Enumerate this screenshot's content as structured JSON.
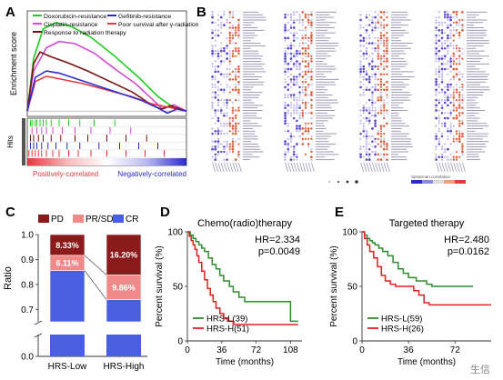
{
  "panel_labels": {
    "a": "A",
    "b": "B",
    "c": "C",
    "d": "D",
    "e": "E"
  },
  "watermark": "生信",
  "chart_data": [
    {
      "id": "A",
      "type": "line",
      "ylabel": "Enrichment score",
      "side_label": "Hits",
      "bottom_labels": {
        "left": "Positively-correlated",
        "right": "Negatively-correlated"
      },
      "legend": [
        {
          "name": "Doxorubicin-resistance",
          "color": "#22cc22"
        },
        {
          "name": "Gefitinib-resistance",
          "color": "#2b2bd0"
        },
        {
          "name": "Cisplatin-resistance",
          "color": "#d24ad2"
        },
        {
          "name": "Poor survival after γ-radiation",
          "color": "#e8363a"
        },
        {
          "name": "Response to radiation therapy",
          "color": "#7a1414"
        }
      ],
      "series": [
        {
          "name": "Doxorubicin-resistance",
          "color": "#22cc22",
          "points": [
            [
              0,
              0
            ],
            [
              0.04,
              0.5
            ],
            [
              0.1,
              0.78
            ],
            [
              0.18,
              0.84
            ],
            [
              0.28,
              0.8
            ],
            [
              0.4,
              0.7
            ],
            [
              0.55,
              0.52
            ],
            [
              0.7,
              0.32
            ],
            [
              0.82,
              0.14
            ],
            [
              0.92,
              0.03
            ],
            [
              1,
              0
            ]
          ]
        },
        {
          "name": "Cisplatin-resistance",
          "color": "#d24ad2",
          "points": [
            [
              0,
              0
            ],
            [
              0.04,
              0.38
            ],
            [
              0.12,
              0.6
            ],
            [
              0.2,
              0.66
            ],
            [
              0.3,
              0.64
            ],
            [
              0.42,
              0.55
            ],
            [
              0.55,
              0.4
            ],
            [
              0.68,
              0.26
            ],
            [
              0.78,
              0.12
            ],
            [
              0.85,
              0.02
            ],
            [
              0.92,
              0.06
            ],
            [
              1,
              0
            ]
          ]
        },
        {
          "name": "Response to radiation therapy",
          "color": "#7a1414",
          "points": [
            [
              0,
              0
            ],
            [
              0.04,
              0.45
            ],
            [
              0.08,
              0.56
            ],
            [
              0.14,
              0.52
            ],
            [
              0.25,
              0.46
            ],
            [
              0.38,
              0.38
            ],
            [
              0.52,
              0.28
            ],
            [
              0.66,
              0.18
            ],
            [
              0.78,
              0.06
            ],
            [
              0.84,
              0.02
            ],
            [
              0.9,
              0.05
            ],
            [
              1,
              0
            ]
          ]
        },
        {
          "name": "Poor survival after γ-radiation",
          "color": "#e8363a",
          "points": [
            [
              0,
              0
            ],
            [
              0.05,
              0.28
            ],
            [
              0.12,
              0.33
            ],
            [
              0.22,
              0.3
            ],
            [
              0.35,
              0.26
            ],
            [
              0.5,
              0.2
            ],
            [
              0.65,
              0.14
            ],
            [
              0.78,
              0.07
            ],
            [
              0.88,
              0.04
            ],
            [
              1,
              0
            ]
          ]
        },
        {
          "name": "Gefitinib-resistance",
          "color": "#2b2bd0",
          "points": [
            [
              0,
              0
            ],
            [
              0.05,
              0.32
            ],
            [
              0.12,
              0.38
            ],
            [
              0.2,
              0.36
            ],
            [
              0.32,
              0.3
            ],
            [
              0.46,
              0.23
            ],
            [
              0.6,
              0.16
            ],
            [
              0.72,
              0.1
            ],
            [
              0.82,
              0.03
            ],
            [
              0.88,
              -0.02
            ],
            [
              0.94,
              0.02
            ],
            [
              1,
              0
            ]
          ]
        }
      ],
      "ylim": [
        -0.05,
        0.95
      ],
      "hit_tracks": [
        {
          "color": "#22cc22",
          "positions": [
            0.02,
            0.03,
            0.05,
            0.06,
            0.08,
            0.1,
            0.12,
            0.15,
            0.2,
            0.26,
            0.33,
            0.42,
            0.55
          ]
        },
        {
          "color": "#d24ad2",
          "positions": [
            0.03,
            0.06,
            0.09,
            0.12,
            0.16,
            0.22,
            0.3,
            0.4,
            0.52,
            0.65
          ]
        },
        {
          "color": "#7a1414",
          "positions": [
            0.02,
            0.04,
            0.07,
            0.1,
            0.15,
            0.21,
            0.3,
            0.38,
            0.5,
            0.62,
            0.75
          ]
        },
        {
          "color": "#2b2bd0",
          "positions": [
            0.02,
            0.04,
            0.06,
            0.09,
            0.13,
            0.18,
            0.25,
            0.33,
            0.45,
            0.58,
            0.7,
            0.82
          ]
        },
        {
          "color": "#e8363a",
          "positions": [
            0.01,
            0.03,
            0.05,
            0.07,
            0.09,
            0.12,
            0.16,
            0.2,
            0.26,
            0.32,
            0.4,
            0.5,
            0.62,
            0.74,
            0.86
          ]
        }
      ],
      "gradient": [
        "#e0393e",
        "#f7b9bb",
        "#ffffff",
        "#b9b9f2",
        "#2a2ac4"
      ]
    },
    {
      "id": "B",
      "type": "scatter",
      "blocks": [
        {
          "rows": 58,
          "label_side": "right"
        },
        {
          "rows": 58,
          "label_side": "right"
        },
        {
          "rows": 58,
          "label_side": "right"
        },
        {
          "rows": 58,
          "label_side": "right"
        }
      ],
      "legend_caption": "Spearman correlation"
    },
    {
      "id": "C",
      "type": "bar",
      "ylabel": "Ratio",
      "categories": [
        "HRS-Low",
        "HRS-High"
      ],
      "legend": [
        {
          "name": "PD",
          "color": "#8b1a1a"
        },
        {
          "name": "PR/SD",
          "color": "#f08a8a"
        },
        {
          "name": "CR",
          "color": "#4a5ee0"
        }
      ],
      "series": [
        {
          "name": "CR",
          "color": "#4a5ee0",
          "values": [
            85.56,
            73.94
          ]
        },
        {
          "name": "PR/SD",
          "color": "#f08a8a",
          "values": [
            6.11,
            9.86
          ]
        },
        {
          "name": "PD",
          "color": "#8b1a1a",
          "values": [
            8.33,
            16.2
          ]
        }
      ],
      "data_labels": {
        "HRS-Low": {
          "PD": "8.33%",
          "PR/SD": "6.11%"
        },
        "HRS-High": {
          "PD": "16.20%",
          "PR/SD": "9.86%"
        }
      },
      "yticks": [
        "0.7",
        "0.8",
        "0.9",
        "1.0",
        "0.0"
      ],
      "ylim_upper": [
        0.65,
        1.0
      ],
      "ylim_lower": [
        0.0,
        0.05
      ],
      "axis_break": true
    },
    {
      "id": "D",
      "type": "line",
      "title": "Chemo(radio)therapy",
      "xlabel": "Time (months)",
      "ylabel": "Percent survival (%)",
      "xticks": [
        "0",
        "36",
        "72",
        "108"
      ],
      "yticks": [
        "0",
        "50",
        "100"
      ],
      "xlim": [
        0,
        120
      ],
      "ylim": [
        0,
        100
      ],
      "annotation": [
        "HR=2.334",
        "p=0.0049"
      ],
      "series": [
        {
          "name": "HRS-L(39)",
          "color": "#2e8b2e",
          "steps": [
            [
              0,
              100
            ],
            [
              3,
              97
            ],
            [
              6,
              94
            ],
            [
              9,
              91
            ],
            [
              12,
              88
            ],
            [
              15,
              85
            ],
            [
              18,
              82
            ],
            [
              22,
              76
            ],
            [
              26,
              70
            ],
            [
              30,
              66
            ],
            [
              34,
              60
            ],
            [
              38,
              55
            ],
            [
              44,
              50
            ],
            [
              48,
              45
            ],
            [
              54,
              40
            ],
            [
              60,
              36
            ],
            [
              108,
              36
            ],
            [
              108,
              18
            ],
            [
              116,
              18
            ]
          ]
        },
        {
          "name": "HRS-H(51)",
          "color": "#e02020",
          "steps": [
            [
              0,
              100
            ],
            [
              2,
              96
            ],
            [
              4,
              92
            ],
            [
              6,
              88
            ],
            [
              8,
              84
            ],
            [
              10,
              78
            ],
            [
              12,
              72
            ],
            [
              15,
              64
            ],
            [
              18,
              56
            ],
            [
              21,
              48
            ],
            [
              24,
              42
            ],
            [
              27,
              36
            ],
            [
              30,
              30
            ],
            [
              34,
              25
            ],
            [
              38,
              21
            ],
            [
              42,
              18
            ],
            [
              48,
              18
            ],
            [
              48,
              15
            ],
            [
              116,
              15
            ]
          ]
        }
      ]
    },
    {
      "id": "E",
      "type": "line",
      "title": "Targeted therapy",
      "xlabel": "Time (months)",
      "ylabel": "Percent survival (%)",
      "xticks": [
        "0",
        "36",
        "72"
      ],
      "yticks": [
        "0",
        "50",
        "100"
      ],
      "xlim": [
        0,
        100
      ],
      "ylim": [
        0,
        100
      ],
      "annotation": [
        "HR=2.480",
        "p=0.0162"
      ],
      "series": [
        {
          "name": "HRS-L(59)",
          "color": "#2e8b2e",
          "steps": [
            [
              0,
              100
            ],
            [
              2,
              97
            ],
            [
              4,
              94
            ],
            [
              6,
              92
            ],
            [
              8,
              90
            ],
            [
              10,
              88
            ],
            [
              13,
              85
            ],
            [
              16,
              82
            ],
            [
              20,
              78
            ],
            [
              24,
              72
            ],
            [
              28,
              66
            ],
            [
              32,
              62
            ],
            [
              36,
              58
            ],
            [
              42,
              55
            ],
            [
              50,
              52
            ],
            [
              54,
              50
            ],
            [
              86,
              50
            ]
          ]
        },
        {
          "name": "HRS-H(26)",
          "color": "#e02020",
          "steps": [
            [
              0,
              100
            ],
            [
              2,
              94
            ],
            [
              4,
              88
            ],
            [
              6,
              82
            ],
            [
              9,
              76
            ],
            [
              12,
              68
            ],
            [
              15,
              60
            ],
            [
              18,
              55
            ],
            [
              22,
              52
            ],
            [
              26,
              50
            ],
            [
              32,
              50
            ],
            [
              40,
              46
            ],
            [
              44,
              42
            ],
            [
              48,
              35
            ],
            [
              52,
              33
            ],
            [
              100,
              33
            ]
          ]
        }
      ]
    }
  ]
}
